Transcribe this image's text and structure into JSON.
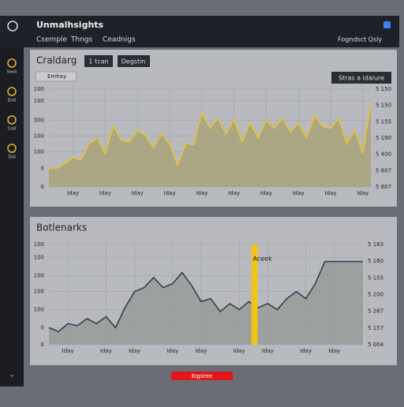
{
  "header": {
    "title": "Unmalhsights",
    "tabs": [
      "Csemple",
      "Thngs",
      "Ceadnigs"
    ],
    "right_text": "Fogndsct Qsly"
  },
  "sidebar": {
    "labels": [
      "Swsb",
      "Esdl",
      "Csdi",
      "Tadi"
    ]
  },
  "chart_data": [
    {
      "type": "area",
      "title": "Craldarg",
      "buttons": [
        "1 tcan",
        "Degstin"
      ],
      "dropdown": "Emhay",
      "action": "Stras a idaiure",
      "color": "#e8c430",
      "fill": "#a8a279",
      "x": [
        0,
        1,
        2,
        3,
        4,
        5,
        6,
        7,
        8,
        9,
        10,
        11,
        12,
        13,
        14,
        15,
        16,
        17,
        18,
        19,
        20,
        21,
        22,
        23,
        24,
        25,
        26,
        27,
        28,
        29,
        30,
        31,
        32,
        33,
        34,
        35,
        36,
        37,
        38,
        39,
        40
      ],
      "values": [
        19,
        19,
        24,
        30,
        28,
        44,
        50,
        34,
        62,
        48,
        46,
        58,
        52,
        40,
        54,
        44,
        22,
        44,
        43,
        76,
        60,
        70,
        54,
        69,
        46,
        66,
        50,
        68,
        60,
        70,
        56,
        65,
        50,
        73,
        62,
        60,
        70,
        44,
        58,
        34,
        86
      ],
      "xlim": [
        0,
        40
      ],
      "ylim": [
        0,
        100
      ],
      "xticks": [
        {
          "value": 3,
          "label": "Iday"
        },
        {
          "value": 7,
          "label": "Iday"
        },
        {
          "value": 11,
          "label": "Iday"
        },
        {
          "value": 15,
          "label": "Iday"
        },
        {
          "value": 19,
          "label": "Iday"
        },
        {
          "value": 23,
          "label": "Iday"
        },
        {
          "value": 27,
          "label": "Iday"
        },
        {
          "value": 31,
          "label": "Iday"
        },
        {
          "value": 35,
          "label": "Iday"
        },
        {
          "value": 39,
          "label": "Iday"
        }
      ],
      "yticks": [
        100,
        {
          "value": 88,
          "label": "100"
        },
        {
          "value": 68,
          "label": "300"
        },
        {
          "value": 52,
          "label": "100"
        },
        {
          "value": 36,
          "label": "100"
        },
        {
          "value": 19,
          "label": "0"
        },
        0
      ],
      "right_labels": [
        "5 150",
        "5 150",
        "5 155",
        "5 190",
        "5 400",
        "5 807",
        "5 807"
      ],
      "grid": true
    },
    {
      "type": "area",
      "title": "Botlenarks",
      "annotation": {
        "text": "Aceek",
        "x": 21.6
      },
      "color": "#3a3d44",
      "fill": "#979c9a",
      "x": [
        0,
        1,
        2,
        3,
        4,
        5,
        6,
        7,
        8,
        9,
        10,
        11,
        12,
        13,
        14,
        15,
        16,
        17,
        18,
        19,
        20,
        21,
        22,
        23,
        24,
        25,
        26,
        27,
        28,
        29,
        30,
        31,
        32,
        33
      ],
      "values": [
        17,
        13,
        21,
        19,
        26,
        21,
        28,
        17,
        37,
        53,
        57,
        67,
        57,
        61,
        72,
        59,
        43,
        46,
        33,
        41,
        35,
        43,
        37,
        41,
        35,
        46,
        53,
        46,
        61,
        83,
        83,
        83,
        83,
        83
      ],
      "xlim": [
        0,
        33
      ],
      "ylim": [
        0,
        100
      ],
      "xticks": [
        {
          "value": 2,
          "label": "Iday"
        },
        {
          "value": 6,
          "label": "Iday"
        },
        {
          "value": 9,
          "label": "Iday"
        },
        {
          "value": 13,
          "label": "Iday"
        },
        {
          "value": 16,
          "label": "Iday"
        },
        {
          "value": 20,
          "label": "Iday"
        },
        {
          "value": 23,
          "label": "Iday"
        },
        {
          "value": 27,
          "label": "Iday"
        },
        {
          "value": 30,
          "label": "Iday"
        }
      ],
      "yticks": [
        100,
        {
          "value": 87,
          "label": "100"
        },
        {
          "value": 69,
          "label": "100"
        },
        {
          "value": 53,
          "label": "100"
        },
        {
          "value": 35,
          "label": "100"
        },
        {
          "value": 17,
          "label": "0"
        },
        0
      ],
      "right_labels": [
        "5 183",
        "5 160",
        "5 155",
        "5 200",
        "5 267",
        "5 157",
        "5 004"
      ],
      "grid": true
    }
  ],
  "footer_button": "Eqpiree"
}
